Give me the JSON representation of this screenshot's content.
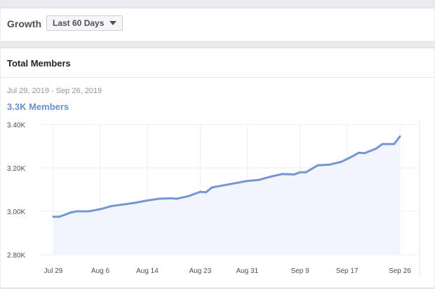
{
  "growth": {
    "label": "Growth",
    "range_selected": "Last 60 Days",
    "dropdown_icon": "caret-down-icon"
  },
  "members_card": {
    "title": "Total Members",
    "date_range": "Jul 29, 2019 - Sep 26, 2019",
    "count": "3.3K Members"
  },
  "colors": {
    "line": "#7596d5",
    "fill": "#f2f5fb",
    "grid": "#eceef1",
    "accent_text": "#6d8fcf"
  },
  "chart_data": {
    "type": "area",
    "xlabel": "",
    "ylabel": "",
    "ylim": [
      2800,
      3400
    ],
    "grid": true,
    "y_ticks": [
      {
        "value": 3400,
        "label": "3.40K"
      },
      {
        "value": 3200,
        "label": "3.20K"
      },
      {
        "value": 3000,
        "label": "3.00K"
      },
      {
        "value": 2800,
        "label": "2.80K"
      }
    ],
    "x_ticks": [
      {
        "date": "2019-07-29",
        "label": "Jul 29"
      },
      {
        "date": "2019-08-06",
        "label": "Aug 6"
      },
      {
        "date": "2019-08-14",
        "label": "Aug 14"
      },
      {
        "date": "2019-08-23",
        "label": "Aug 23"
      },
      {
        "date": "2019-08-31",
        "label": "Aug 31"
      },
      {
        "date": "2019-09-09",
        "label": "Sep 9"
      },
      {
        "date": "2019-09-17",
        "label": "Sep 17"
      },
      {
        "date": "2019-09-26",
        "label": "Sep 26"
      }
    ],
    "x": [
      "2019-07-29",
      "2019-07-30",
      "2019-08-01",
      "2019-08-02",
      "2019-08-04",
      "2019-08-06",
      "2019-08-08",
      "2019-08-10",
      "2019-08-12",
      "2019-08-14",
      "2019-08-16",
      "2019-08-18",
      "2019-08-19",
      "2019-08-21",
      "2019-08-23",
      "2019-08-24",
      "2019-08-25",
      "2019-08-27",
      "2019-08-29",
      "2019-08-31",
      "2019-09-02",
      "2019-09-04",
      "2019-09-06",
      "2019-09-08",
      "2019-09-09",
      "2019-09-10",
      "2019-09-12",
      "2019-09-14",
      "2019-09-16",
      "2019-09-18",
      "2019-09-19",
      "2019-09-20",
      "2019-09-22",
      "2019-09-23",
      "2019-09-25",
      "2019-09-26"
    ],
    "values": [
      2975,
      2975,
      2995,
      3000,
      3000,
      3010,
      3025,
      3032,
      3040,
      3050,
      3058,
      3060,
      3058,
      3070,
      3090,
      3088,
      3110,
      3120,
      3130,
      3140,
      3145,
      3160,
      3172,
      3170,
      3180,
      3180,
      3212,
      3215,
      3228,
      3255,
      3270,
      3268,
      3290,
      3310,
      3310,
      3345
    ]
  }
}
